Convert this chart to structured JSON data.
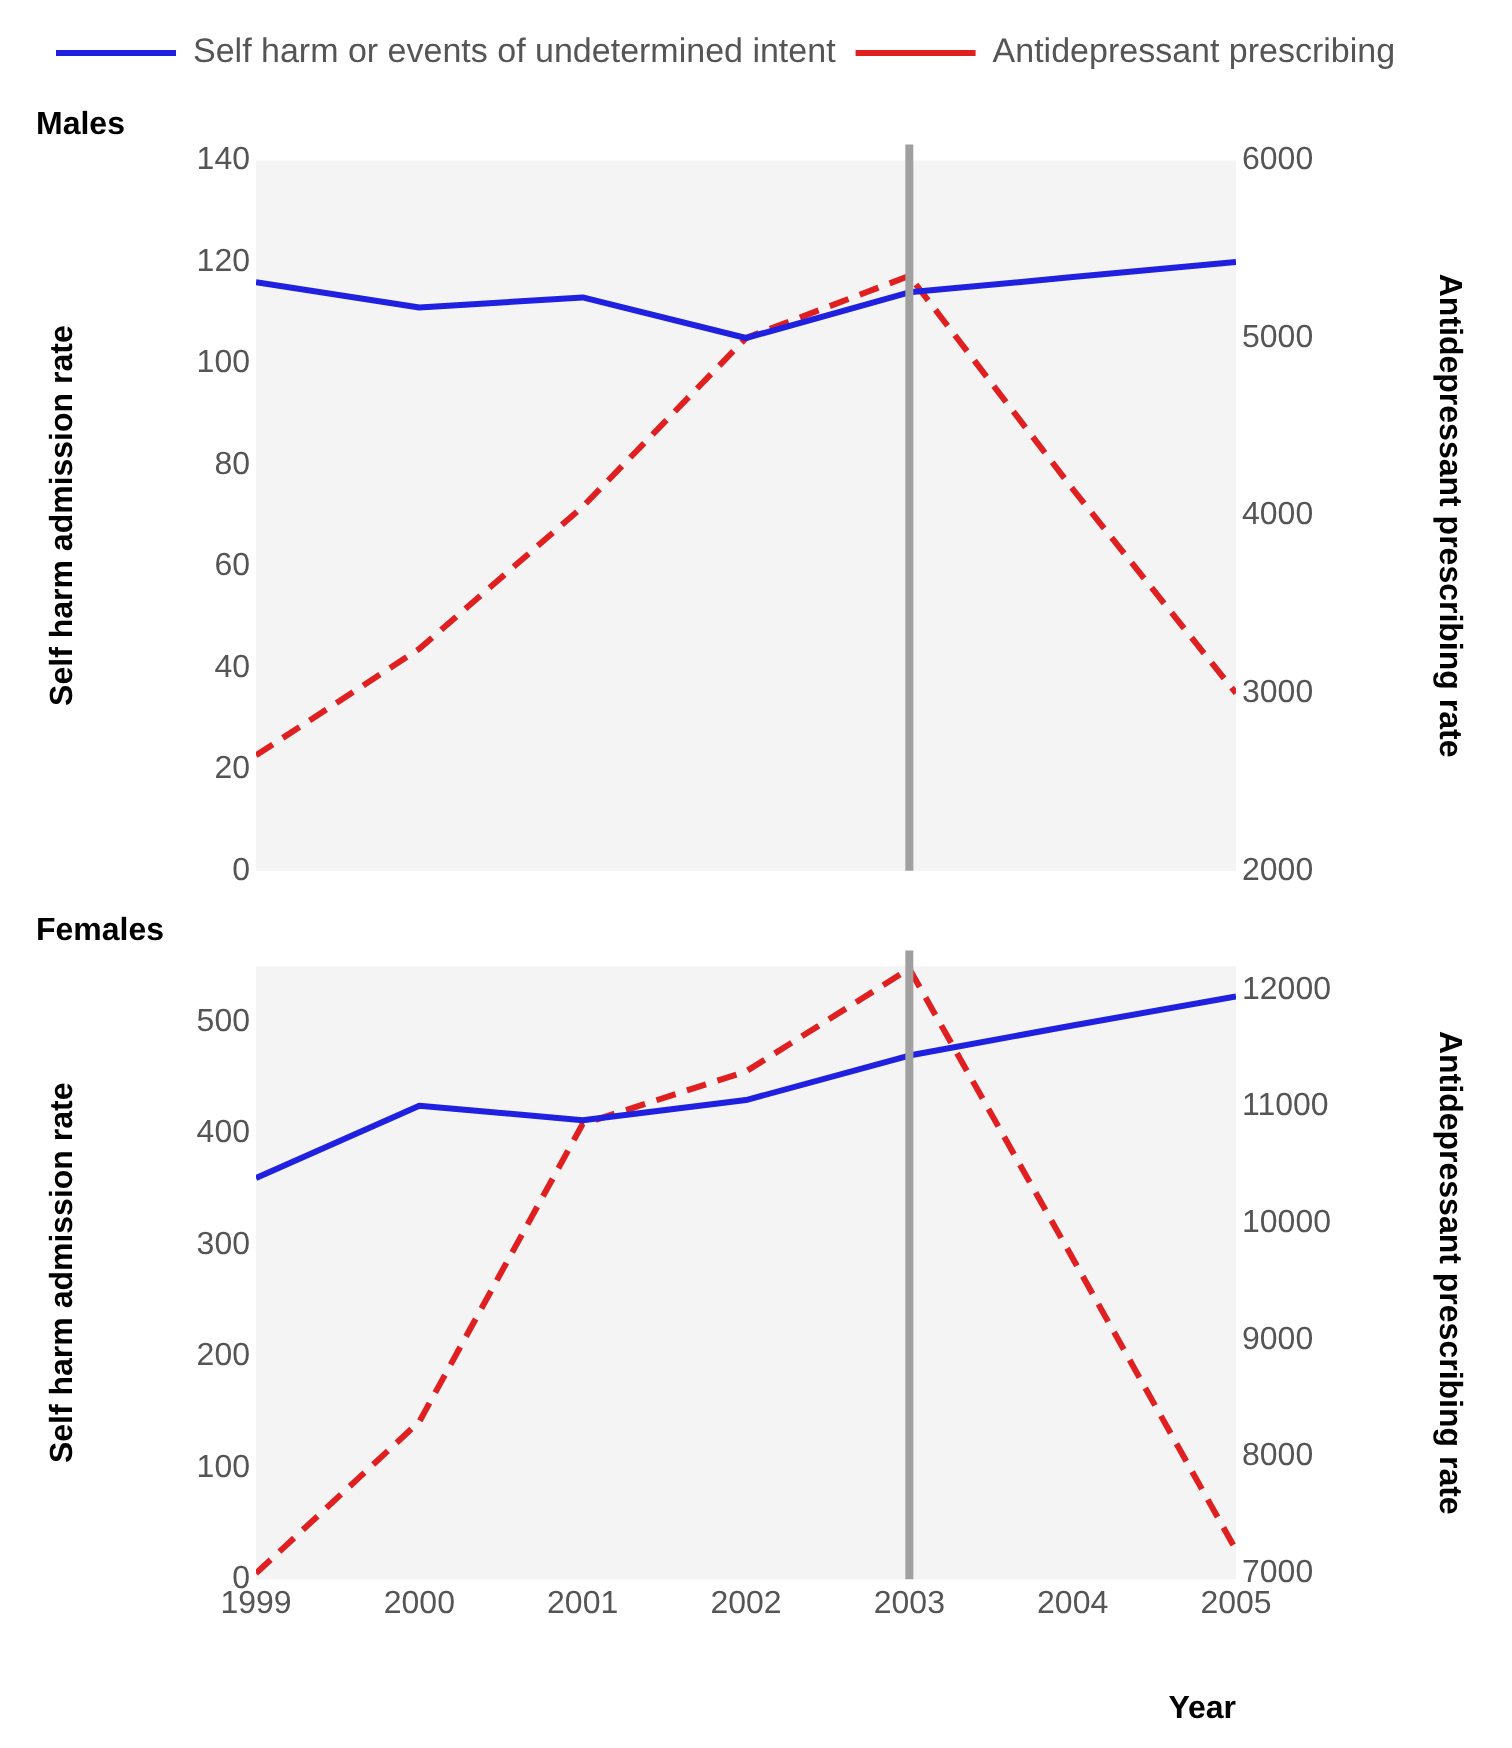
{
  "chart_data": [
    {
      "type": "line",
      "title": "Males",
      "ylabel": "Self harm admission rate",
      "y2label": "Antidepressant prescribing rate",
      "x": [
        1999,
        2000,
        2001,
        2002,
        2003,
        2004,
        2005
      ],
      "xlim": [
        1999,
        2005
      ],
      "xticks": [
        1999,
        2000,
        2001,
        2002,
        2003,
        2004,
        2005
      ],
      "ylim": [
        0,
        140
      ],
      "yticks": [
        0,
        20,
        40,
        60,
        80,
        100,
        120,
        140
      ],
      "y2lim": [
        2000,
        6000
      ],
      "y2ticks": [
        2000,
        3000,
        4000,
        5000,
        6000
      ],
      "grid": false,
      "legend": "top left",
      "tick_labels": "y",
      "marker": "none",
      "series": [
        {
          "name": "Self harm or events of undetermined intent",
          "color": "#2020e0",
          "line_style": "solid",
          "values": [
            116,
            111,
            113,
            105,
            114,
            117,
            120
          ]
        },
        {
          "name": "Antidepressant prescribing",
          "color": "#e02020",
          "line_style": "dashed",
          "axis": "y2",
          "values": [
            2650,
            3250,
            4050,
            5000,
            5350,
            4150,
            3000
          ]
        }
      ],
      "ref_lines": [
        {
          "axis": "x",
          "value": 2003,
          "color": "#a0a0a0"
        }
      ]
    },
    {
      "type": "line",
      "title": "Females",
      "xlabel": "Year",
      "ylabel": "Self harm admission rate",
      "y2label": "Antidepressant prescribing rate",
      "x": [
        1999,
        2000,
        2001,
        2002,
        2003,
        2004,
        2005
      ],
      "xlim": [
        1999,
        2005
      ],
      "xticks": [
        1999,
        2000,
        2001,
        2002,
        2003,
        2004,
        2005
      ],
      "ylim": [
        0,
        550
      ],
      "yticks": [
        0,
        100,
        200,
        300,
        400,
        500
      ],
      "y2lim": [
        6950,
        12200
      ],
      "y2ticks": [
        7000,
        8000,
        9000,
        10000,
        11000,
        12000
      ],
      "grid": false,
      "marker": "none",
      "series": [
        {
          "color": "#2020e0",
          "line_style": "solid",
          "values": [
            360,
            425,
            412,
            430,
            470,
            497,
            523
          ]
        },
        {
          "color": "#e02020",
          "line_style": "dashed",
          "axis": "y2",
          "values": [
            7000,
            8300,
            10850,
            11300,
            12180,
            9700,
            7200
          ]
        }
      ],
      "ref_lines": [
        {
          "axis": "x",
          "value": 2003,
          "color": "#a0a0a0"
        }
      ]
    }
  ]
}
